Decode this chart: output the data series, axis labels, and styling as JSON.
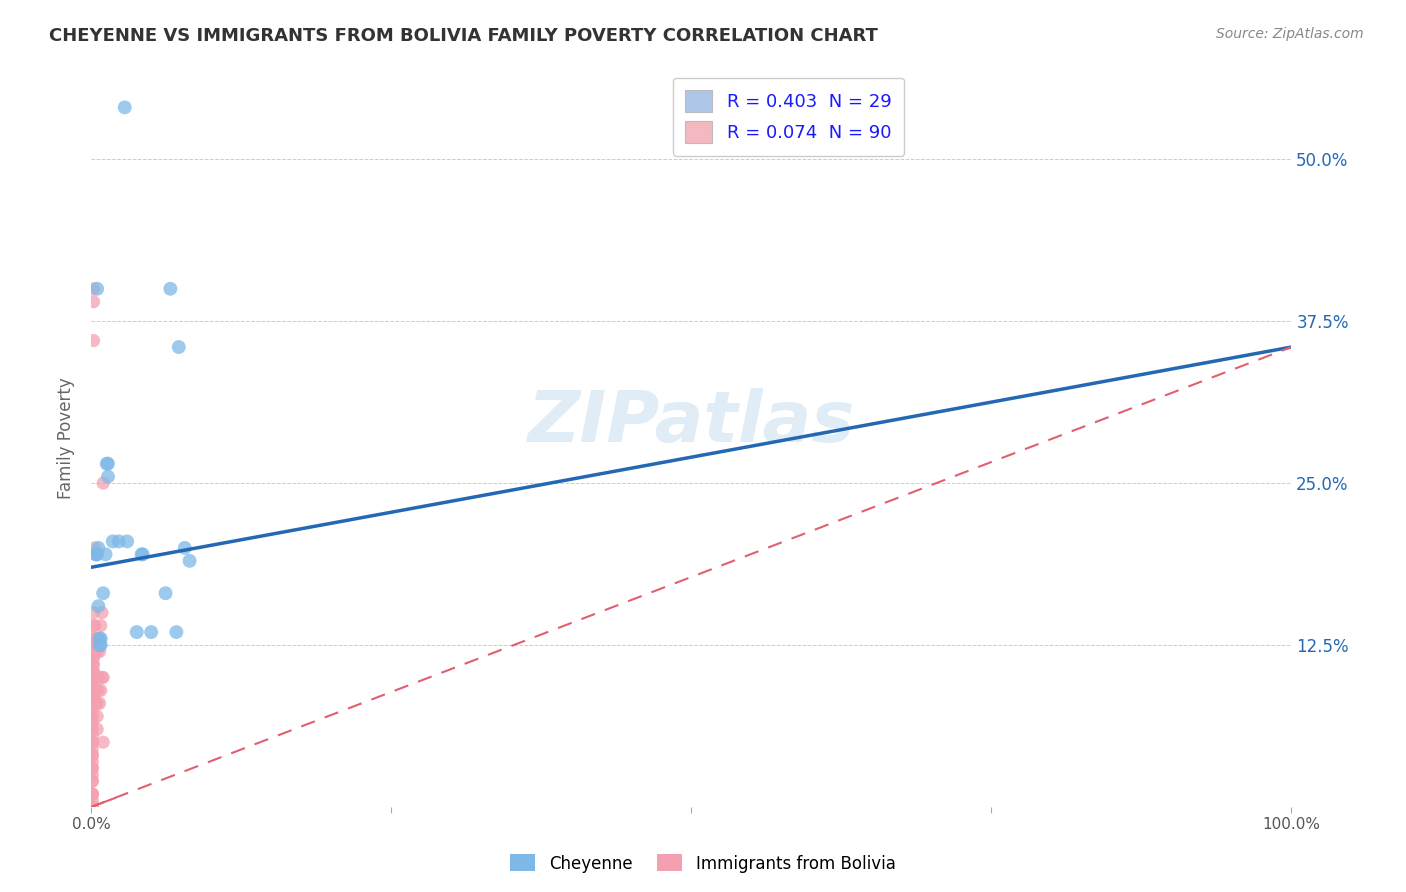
{
  "title": "CHEYENNE VS IMMIGRANTS FROM BOLIVIA FAMILY POVERTY CORRELATION CHART",
  "source": "Source: ZipAtlas.com",
  "ylabel": "Family Poverty",
  "xlabel": "",
  "xlim": [
    0.0,
    1.0
  ],
  "ylim": [
    0.0,
    0.57
  ],
  "ytick_positions": [
    0.125,
    0.25,
    0.375,
    0.5
  ],
  "ytick_labels": [
    "12.5%",
    "25.0%",
    "37.5%",
    "50.0%"
  ],
  "legend_labels": [
    "R = 0.403  N = 29",
    "R = 0.074  N = 90"
  ],
  "legend_colors": [
    "#aec6e8",
    "#f4b8c1"
  ],
  "cheyenne_color": "#7db8e8",
  "bolivia_color": "#f4a0b0",
  "cheyenne_line_color": "#2468b4",
  "bolivia_line_color": "#e06070",
  "watermark": "ZIPatlas",
  "cheyenne_line": [
    0.0,
    0.185,
    1.0,
    0.355
  ],
  "bolivia_line": [
    0.0,
    0.0,
    1.0,
    0.355
  ],
  "cheyenne_x": [
    0.028,
    0.066,
    0.073,
    0.005,
    0.005,
    0.006,
    0.013,
    0.014,
    0.014,
    0.018,
    0.012,
    0.023,
    0.03,
    0.042,
    0.043,
    0.006,
    0.007,
    0.007,
    0.008,
    0.008,
    0.062,
    0.071,
    0.078,
    0.082,
    0.05,
    0.038,
    0.004,
    0.004,
    0.01
  ],
  "cheyenne_y": [
    0.54,
    0.4,
    0.355,
    0.4,
    0.195,
    0.2,
    0.265,
    0.265,
    0.255,
    0.205,
    0.195,
    0.205,
    0.205,
    0.195,
    0.195,
    0.155,
    0.13,
    0.125,
    0.13,
    0.125,
    0.165,
    0.135,
    0.2,
    0.19,
    0.135,
    0.135,
    0.195,
    0.195,
    0.165
  ],
  "bolivia_x": [
    0.001,
    0.001,
    0.001,
    0.001,
    0.001,
    0.001,
    0.001,
    0.001,
    0.001,
    0.001,
    0.001,
    0.001,
    0.001,
    0.001,
    0.001,
    0.001,
    0.001,
    0.001,
    0.001,
    0.001,
    0.001,
    0.001,
    0.001,
    0.001,
    0.001,
    0.001,
    0.001,
    0.001,
    0.001,
    0.001,
    0.001,
    0.001,
    0.001,
    0.001,
    0.001,
    0.001,
    0.001,
    0.001,
    0.001,
    0.001,
    0.001,
    0.001,
    0.001,
    0.001,
    0.001,
    0.001,
    0.001,
    0.001,
    0.001,
    0.001,
    0.002,
    0.002,
    0.002,
    0.002,
    0.002,
    0.002,
    0.002,
    0.002,
    0.002,
    0.002,
    0.002,
    0.002,
    0.002,
    0.002,
    0.003,
    0.003,
    0.003,
    0.003,
    0.003,
    0.003,
    0.004,
    0.004,
    0.004,
    0.004,
    0.005,
    0.005,
    0.005,
    0.005,
    0.006,
    0.006,
    0.006,
    0.007,
    0.007,
    0.008,
    0.008,
    0.009,
    0.009,
    0.01,
    0.01,
    0.01
  ],
  "bolivia_y": [
    0.0,
    0.0,
    0.0,
    0.0,
    0.0,
    0.0,
    0.0,
    0.0,
    0.0,
    0.0,
    0.0,
    0.0,
    0.0,
    0.0,
    0.0,
    0.0,
    0.0,
    0.0,
    0.0,
    0.0,
    0.005,
    0.01,
    0.01,
    0.01,
    0.02,
    0.02,
    0.025,
    0.03,
    0.03,
    0.035,
    0.04,
    0.04,
    0.045,
    0.05,
    0.05,
    0.055,
    0.06,
    0.065,
    0.07,
    0.07,
    0.075,
    0.08,
    0.085,
    0.09,
    0.095,
    0.1,
    0.105,
    0.11,
    0.115,
    0.12,
    0.085,
    0.09,
    0.1,
    0.105,
    0.11,
    0.115,
    0.12,
    0.125,
    0.13,
    0.14,
    0.15,
    0.36,
    0.39,
    0.4,
    0.08,
    0.1,
    0.12,
    0.13,
    0.14,
    0.2,
    0.08,
    0.09,
    0.1,
    0.13,
    0.06,
    0.07,
    0.08,
    0.12,
    0.09,
    0.1,
    0.13,
    0.08,
    0.12,
    0.09,
    0.14,
    0.1,
    0.15,
    0.05,
    0.1,
    0.25
  ]
}
